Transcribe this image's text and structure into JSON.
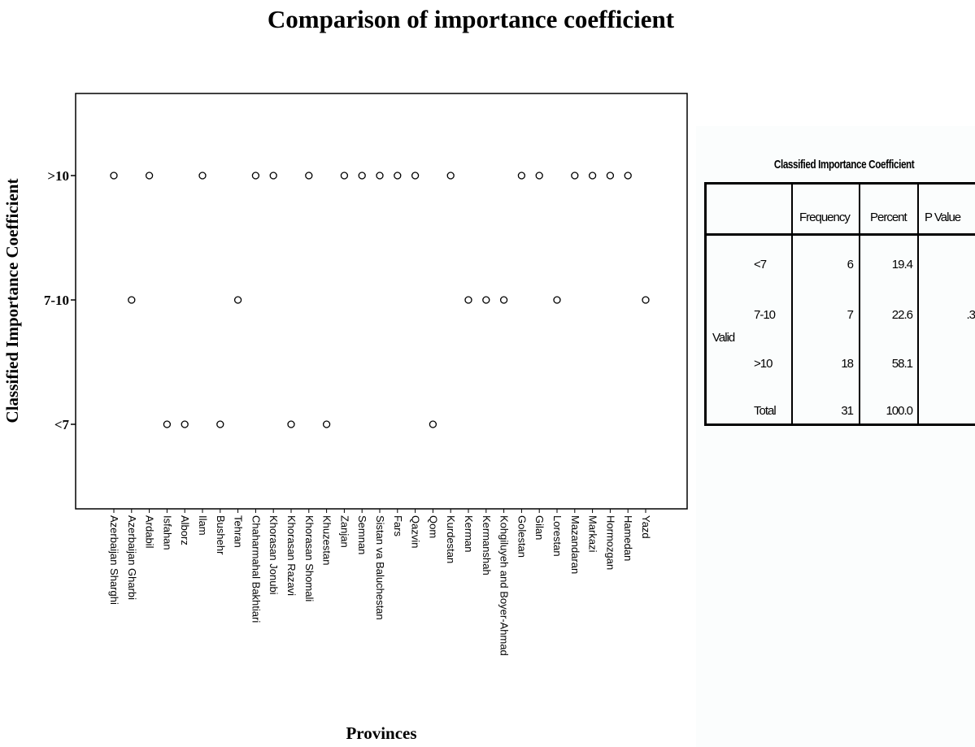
{
  "chart_data": {
    "type": "scatter",
    "title": "Comparison of importance coefficient",
    "xlabel": "Provinces",
    "ylabel": "Classified Importance Coefficient",
    "y_categories": [
      "<7",
      "7-10",
      ">10"
    ],
    "y_tick_labels": [
      "<7",
      "7-10",
      ">10"
    ],
    "grid": false,
    "marker": "open-circle",
    "categories": [
      "Azerbaijan Sharghi",
      "Azerbaijan Gharbi",
      "Ardabil",
      "Isfahan",
      "Alborz",
      "Ilam",
      "Bushehr",
      "Tehran",
      "Chaharmahal Bakhtiari",
      "Khorasan Jonubi",
      "Khorasan Razavi",
      "Khorasan Shomali",
      "Khuzestan",
      "Zanjan",
      "Semnan",
      "Sistan va Baluchestan",
      "Fars",
      "Qazvin",
      "Qom",
      "Kurdestan",
      "Kerman",
      "Kermanshah",
      "Kohgiluyeh and Boyer-Ahmad",
      "Golestan",
      "Gilan",
      "Lorestan",
      "Mazandaran",
      "Markazi",
      "Hormozgan",
      "Hamedan",
      "Yazd"
    ],
    "values": [
      ">10",
      "7-10",
      ">10",
      "<7",
      "<7",
      ">10",
      "<7",
      "7-10",
      ">10",
      ">10",
      "<7",
      ">10",
      "<7",
      ">10",
      ">10",
      ">10",
      ">10",
      ">10",
      "<7",
      ">10",
      "7-10",
      "7-10",
      "7-10",
      ">10",
      ">10",
      "7-10",
      ">10",
      ">10",
      ">10",
      ">10",
      "7-10"
    ]
  },
  "table": {
    "title": "Classified Importance Coefficient",
    "headers": [
      "Frequency",
      "Percent",
      "P Value"
    ],
    "group_label": "Valid",
    "rows": [
      {
        "label": "<7",
        "frequency": "6",
        "percent": "19.4"
      },
      {
        "label": "7-10",
        "frequency": "7",
        "percent": "22.6"
      },
      {
        "label": ">10",
        "frequency": "18",
        "percent": "58.1"
      },
      {
        "label": "Total",
        "frequency": "31",
        "percent": "100.0"
      }
    ],
    "p_value": ".3"
  }
}
